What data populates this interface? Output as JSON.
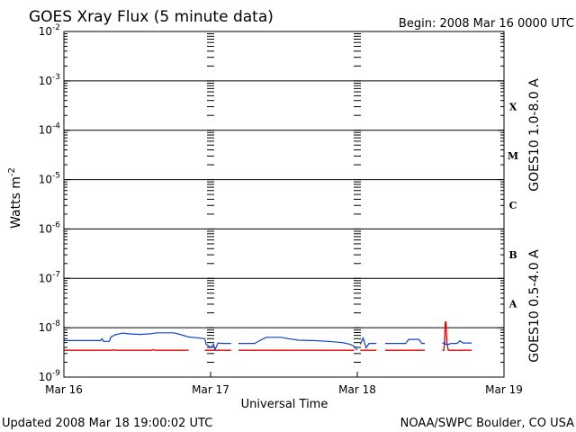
{
  "chart_data": {
    "type": "line",
    "title": "GOES Xray Flux (5 minute data)",
    "begin": "Begin:  2008 Mar 16 0000 UTC",
    "ylabel": "Watts m",
    "ylabel_exp": "-2",
    "xlabel": "Universal Time",
    "yscale": "log",
    "ylim": [
      1e-09,
      0.01
    ],
    "y_ticks": [
      {
        "mant": "10",
        "exp": "-9",
        "value": 1e-09
      },
      {
        "mant": "10",
        "exp": "-8",
        "value": 1e-08
      },
      {
        "mant": "10",
        "exp": "-7",
        "value": 1e-07
      },
      {
        "mant": "10",
        "exp": "-6",
        "value": 1e-06
      },
      {
        "mant": "10",
        "exp": "-5",
        "value": 1e-05
      },
      {
        "mant": "10",
        "exp": "-4",
        "value": 0.0001
      },
      {
        "mant": "10",
        "exp": "-3",
        "value": 0.001
      },
      {
        "mant": "10",
        "exp": "-2",
        "value": 0.01
      }
    ],
    "x_unit": "days since Mar 16 0000 UTC",
    "xlim": [
      0,
      3
    ],
    "x_ticks": [
      {
        "label": "Mar 16",
        "day": 0
      },
      {
        "label": "Mar 17",
        "day": 1
      },
      {
        "label": "Mar 18",
        "day": 2
      },
      {
        "label": "Mar 19",
        "day": 3
      }
    ],
    "flare_classes": [
      {
        "label": "X",
        "value": 0.0001
      },
      {
        "label": "M",
        "value": 1e-05
      },
      {
        "label": "C",
        "value": 1e-06
      },
      {
        "label": "B",
        "value": 1e-07
      },
      {
        "label": "A",
        "value": 1e-08
      }
    ],
    "series": [
      {
        "name": "GOES10 1.0-8.0 A",
        "color": "#e00000",
        "segments": [
          [
            [
              0.0,
              3.5e-09
            ],
            [
              0.33,
              3.5e-09
            ],
            [
              0.34,
              3.6e-09
            ],
            [
              0.35,
              3.5e-09
            ],
            [
              0.6,
              3.5e-09
            ],
            [
              0.61,
              3.6e-09
            ],
            [
              0.62,
              3.5e-09
            ],
            [
              0.85,
              3.5e-09
            ]
          ],
          [
            [
              0.96,
              3.5e-09
            ],
            [
              1.14,
              3.5e-09
            ]
          ],
          [
            [
              1.19,
              3.5e-09
            ],
            [
              1.98,
              3.5e-09
            ]
          ],
          [
            [
              2.02,
              3.5e-09
            ],
            [
              2.13,
              3.5e-09
            ]
          ],
          [
            [
              2.19,
              3.5e-09
            ],
            [
              2.46,
              3.5e-09
            ]
          ],
          [
            [
              2.58,
              3.5e-09
            ],
            [
              2.59,
              3.5e-09
            ],
            [
              2.595,
              6e-09
            ],
            [
              2.6,
              1.3e-08
            ],
            [
              2.605,
              1.3e-08
            ],
            [
              2.61,
              5e-09
            ],
            [
              2.62,
              3.5e-09
            ],
            [
              2.78,
              3.5e-09
            ]
          ]
        ]
      },
      {
        "name": "GOES10 0.5-4.0 A",
        "color": "#1040d0",
        "segments": [
          [
            [
              0.0,
              5.5e-09
            ],
            [
              0.25,
              5.5e-09
            ],
            [
              0.26,
              6e-09
            ],
            [
              0.27,
              5.3e-09
            ],
            [
              0.31,
              5.3e-09
            ],
            [
              0.32,
              6.5e-09
            ],
            [
              0.35,
              7.2e-09
            ],
            [
              0.4,
              7.8e-09
            ],
            [
              0.45,
              7.5e-09
            ],
            [
              0.52,
              7.3e-09
            ],
            [
              0.6,
              7.6e-09
            ],
            [
              0.63,
              7.9e-09
            ],
            [
              0.75,
              7.9e-09
            ],
            [
              0.8,
              7.2e-09
            ],
            [
              0.85,
              6.5e-09
            ],
            [
              0.9,
              6.3e-09
            ],
            [
              0.96,
              6e-09
            ],
            [
              0.97,
              4.6e-09
            ],
            [
              1.0,
              4e-09
            ],
            [
              1.02,
              4.6e-09
            ],
            [
              1.03,
              3.6e-09
            ],
            [
              1.05,
              4.9e-09
            ],
            [
              1.08,
              4.8e-09
            ],
            [
              1.14,
              4.8e-09
            ]
          ],
          [
            [
              1.19,
              4.8e-09
            ],
            [
              1.3,
              4.8e-09
            ],
            [
              1.34,
              5.6e-09
            ],
            [
              1.38,
              6.4e-09
            ],
            [
              1.48,
              6.4e-09
            ],
            [
              1.53,
              6e-09
            ],
            [
              1.6,
              5.6e-09
            ],
            [
              1.7,
              5.5e-09
            ],
            [
              1.8,
              5.3e-09
            ],
            [
              1.9,
              5e-09
            ],
            [
              1.95,
              4.6e-09
            ],
            [
              1.98,
              4.2e-09
            ],
            [
              2.0,
              3.5e-09
            ]
          ],
          [
            [
              2.02,
              4.6e-09
            ],
            [
              2.04,
              6.2e-09
            ],
            [
              2.06,
              3.9e-09
            ],
            [
              2.08,
              4.8e-09
            ],
            [
              2.13,
              4.8e-09
            ]
          ],
          [
            [
              2.19,
              4.8e-09
            ],
            [
              2.33,
              4.8e-09
            ],
            [
              2.35,
              5.8e-09
            ],
            [
              2.42,
              5.8e-09
            ],
            [
              2.44,
              4.8e-09
            ],
            [
              2.46,
              4.8e-09
            ]
          ],
          [
            [
              2.58,
              4.8e-09
            ],
            [
              2.595,
              5e-09
            ],
            [
              2.6,
              4.6e-09
            ],
            [
              2.62,
              4.6e-09
            ],
            [
              2.64,
              4.8e-09
            ],
            [
              2.68,
              4.8e-09
            ],
            [
              2.7,
              5.4e-09
            ],
            [
              2.72,
              4.9e-09
            ],
            [
              2.78,
              4.9e-09
            ]
          ]
        ]
      }
    ]
  },
  "footer": {
    "updated": "Updated 2008 Mar 18 19:00:02 UTC",
    "credit": "NOAA/SWPC Boulder, CO USA"
  }
}
